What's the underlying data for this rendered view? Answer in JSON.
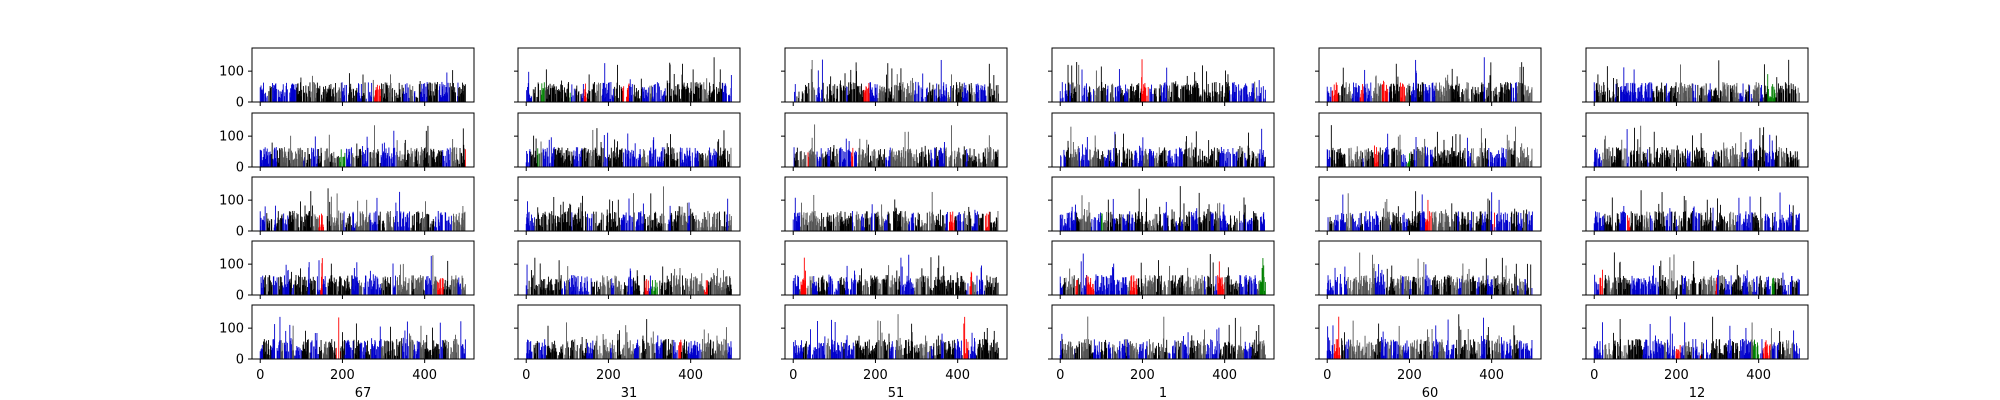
{
  "chart_data": {
    "type": "bar",
    "layout": "5 rows x 6 columns small-multiples grid",
    "column_labels": [
      "67",
      "31",
      "51",
      "1",
      "60",
      "12"
    ],
    "x_ticks": [
      "0",
      "200",
      "400"
    ],
    "y_ticks": [
      "0",
      "100"
    ],
    "xlim": [
      -20,
      520
    ],
    "ylim": [
      0,
      175
    ],
    "bars_per_panel": 500,
    "value_range_estimate": [
      0,
      160
    ],
    "typical_value_estimate": 50,
    "bar_colors": [
      "#000000",
      "#0000cc",
      "#555555",
      "#ff0000",
      "#008000"
    ],
    "grid": false,
    "legend": "none"
  }
}
